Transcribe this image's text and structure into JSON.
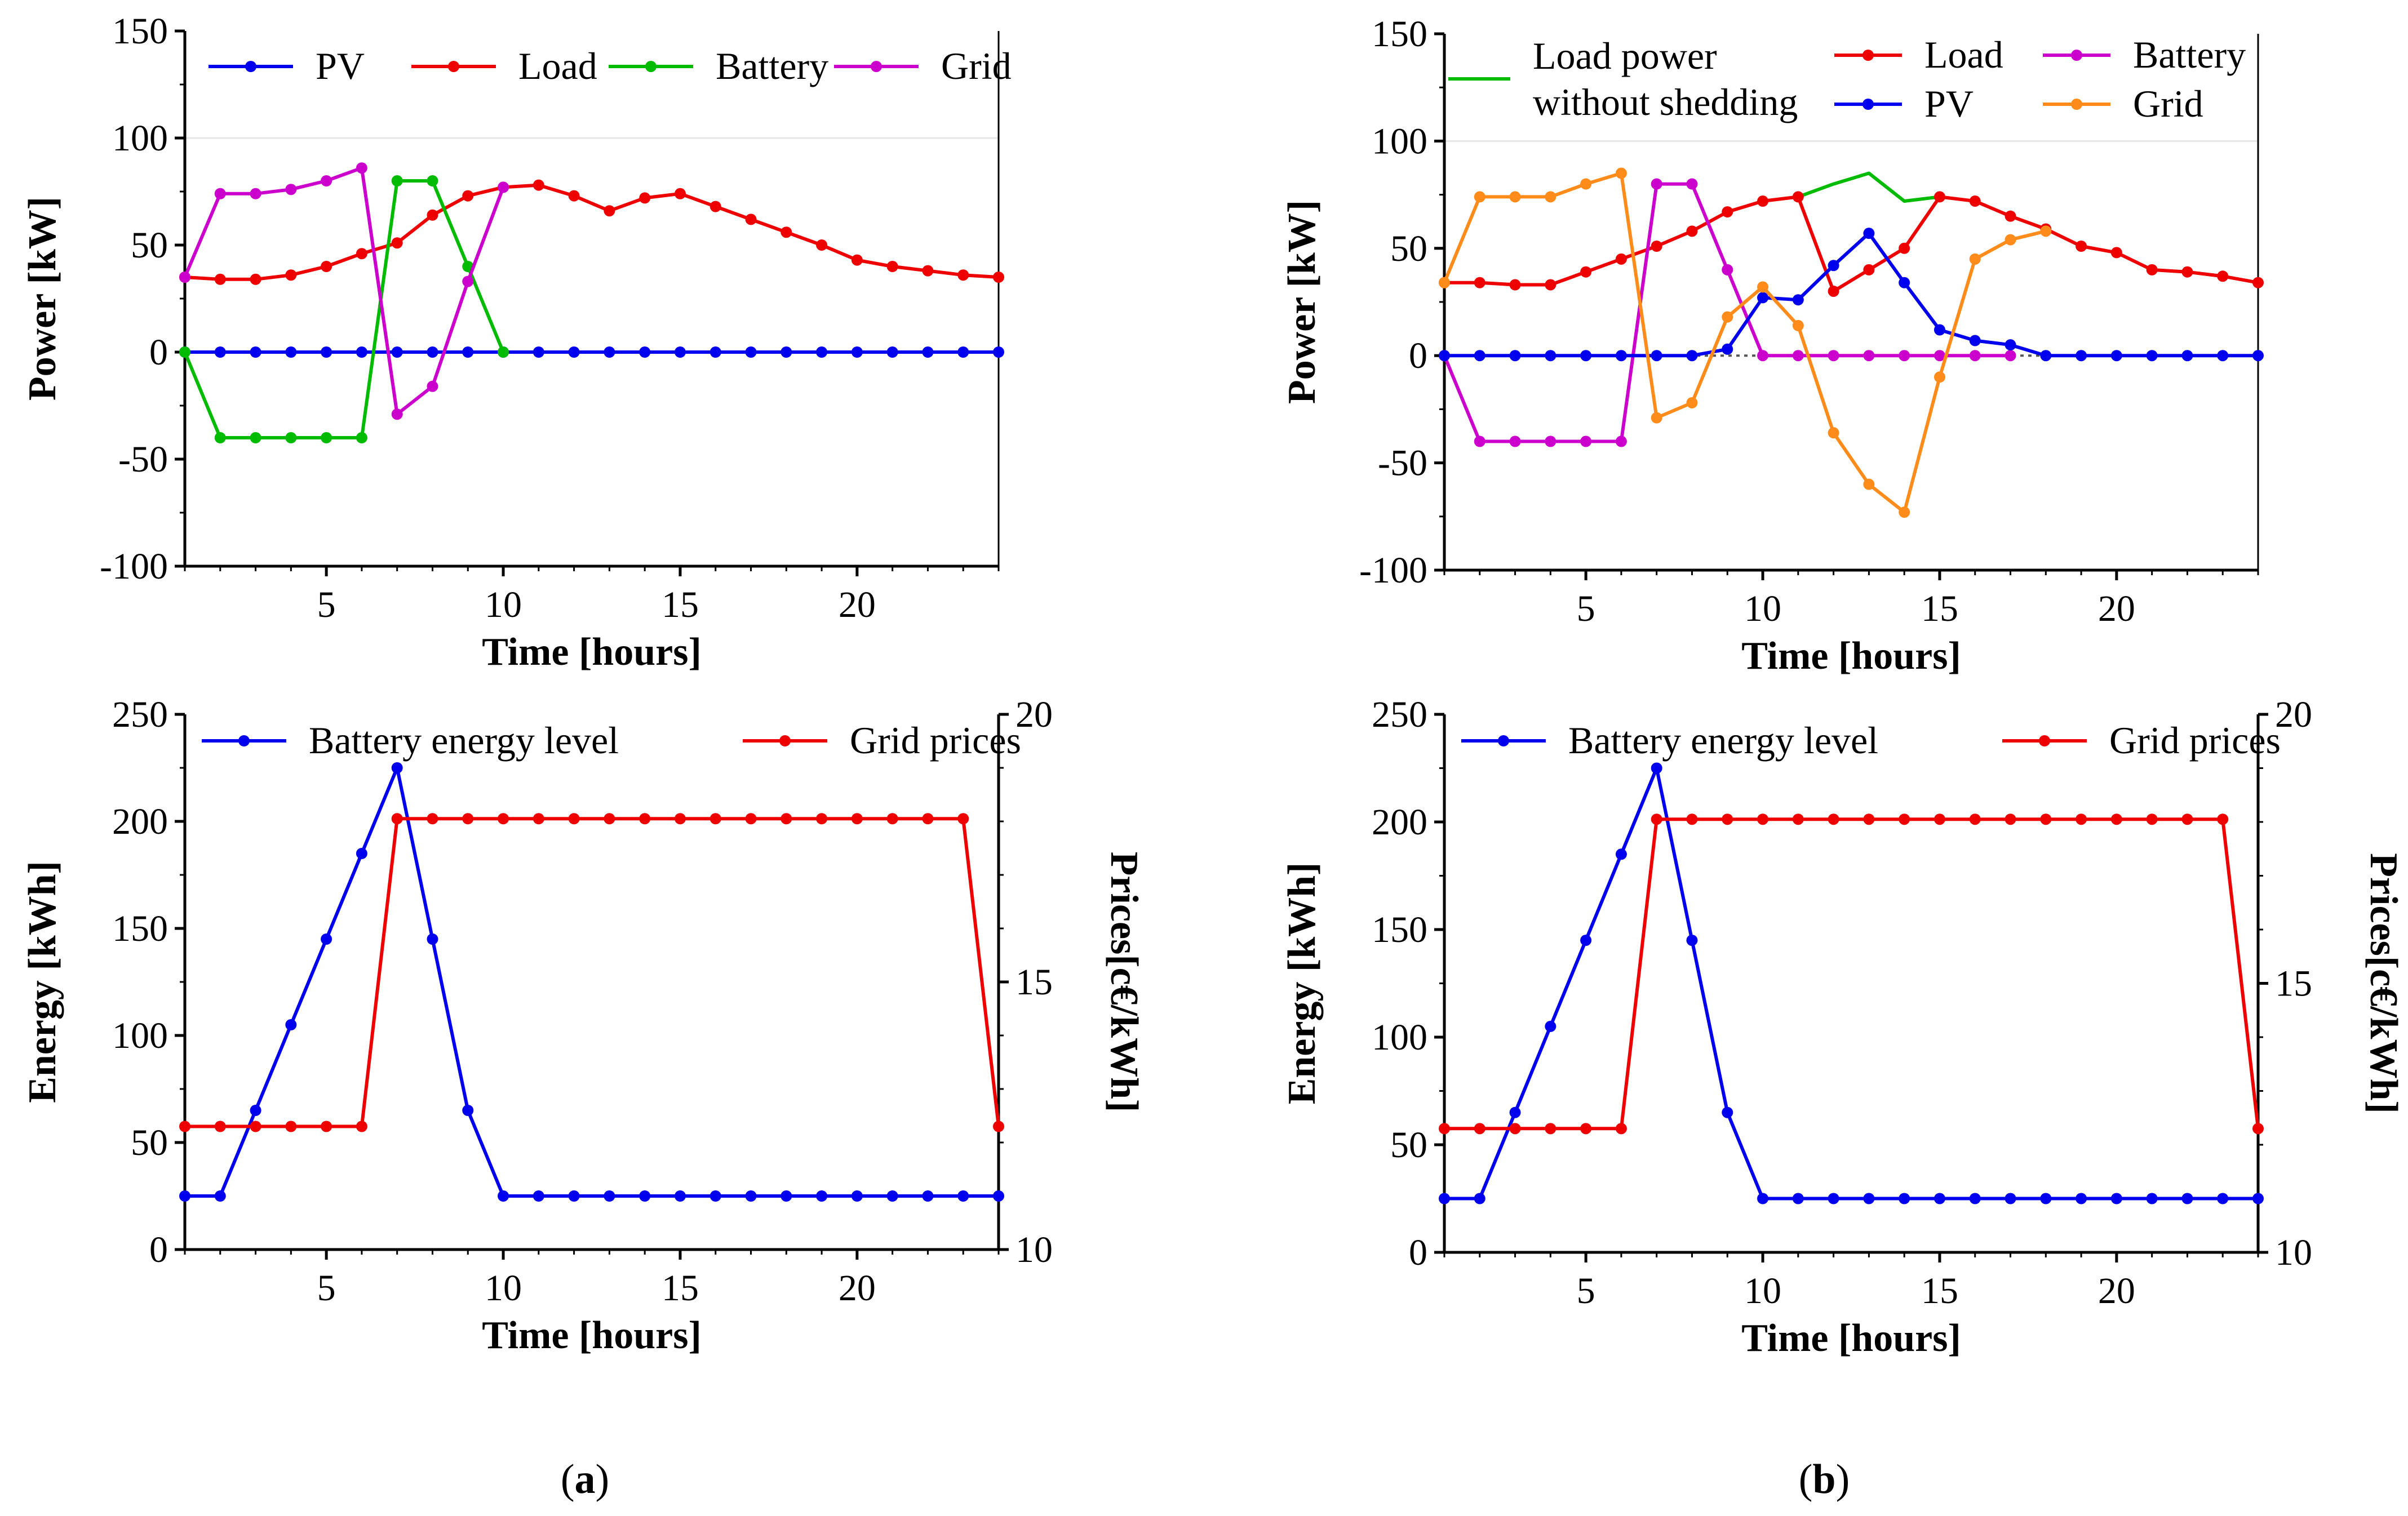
{
  "panel_captions": [
    {
      "open": "(",
      "letter": "a",
      "close": ")"
    },
    {
      "open": "(",
      "letter": "b",
      "close": ")"
    }
  ],
  "chart_data": [
    {
      "id": "a_power",
      "type": "line",
      "xlabel": "Time [hours]",
      "ylabel": "Power [kW]",
      "xlim": [
        1,
        24
      ],
      "ylim": [
        -100,
        150
      ],
      "xticks": [
        5,
        10,
        15,
        20
      ],
      "yticks": [
        -100,
        -50,
        0,
        50,
        100,
        150
      ],
      "gridlines": [
        100
      ],
      "x": [
        1,
        2,
        3,
        4,
        5,
        6,
        7,
        8,
        9,
        10,
        11,
        12,
        13,
        14,
        15,
        16,
        17,
        18,
        19,
        20,
        21,
        22,
        23,
        24
      ],
      "series": [
        {
          "name": "PV",
          "color": "#0000ee",
          "markers": true,
          "values": [
            0,
            0,
            0,
            0,
            0,
            0,
            0,
            0,
            0,
            0,
            0,
            0,
            0,
            0,
            0,
            0,
            0,
            0,
            0,
            0,
            0,
            0,
            0,
            0
          ]
        },
        {
          "name": "Load",
          "color": "#ee0000",
          "markers": true,
          "values": [
            35,
            34,
            34,
            36,
            40,
            46,
            51,
            64,
            73,
            77,
            78,
            73,
            66,
            72,
            74,
            68,
            62,
            56,
            50,
            43,
            40,
            38,
            36,
            35
          ]
        },
        {
          "name": "Battery",
          "color": "#00bb00",
          "markers": true,
          "x": [
            1,
            2,
            3,
            4,
            5,
            6,
            7,
            8,
            9,
            10
          ],
          "values": [
            0,
            -40,
            -40,
            -40,
            -40,
            -40,
            80,
            80,
            40,
            0
          ]
        },
        {
          "name": "Grid",
          "color": "#cc00cc",
          "markers": true,
          "x": [
            1,
            2,
            3,
            4,
            5,
            6,
            7,
            8,
            9,
            10
          ],
          "values": [
            35,
            74,
            74,
            76,
            80,
            86,
            -29,
            -16,
            33,
            77
          ]
        }
      ]
    },
    {
      "id": "a_energy",
      "type": "line",
      "xlabel": "Time [hours]",
      "ylabel": "Energy [kWh]",
      "y2label": "Prices[c€/kWh]",
      "xlim": [
        1,
        24
      ],
      "ylim": [
        0,
        250
      ],
      "y2lim": [
        10,
        20
      ],
      "xticks": [
        5,
        10,
        15,
        20
      ],
      "yticks": [
        0,
        50,
        100,
        150,
        200,
        250
      ],
      "y2ticks": [
        10,
        15,
        20
      ],
      "x": [
        1,
        2,
        3,
        4,
        5,
        6,
        7,
        8,
        9,
        10,
        11,
        12,
        13,
        14,
        15,
        16,
        17,
        18,
        19,
        20,
        21,
        22,
        23,
        24
      ],
      "series": [
        {
          "name": "Battery energy level",
          "color": "#0000ee",
          "markers": true,
          "axis": "left",
          "values": [
            25,
            25,
            65,
            105,
            145,
            185,
            225,
            145,
            65,
            25,
            25,
            25,
            25,
            25,
            25,
            25,
            25,
            25,
            25,
            25,
            25,
            25,
            25,
            25
          ]
        },
        {
          "name": "Grid prices",
          "color": "#ee0000",
          "markers": true,
          "axis": "right",
          "values": [
            12.3,
            12.3,
            12.3,
            12.3,
            12.3,
            12.3,
            18.05,
            18.05,
            18.05,
            18.05,
            18.05,
            18.05,
            18.05,
            18.05,
            18.05,
            18.05,
            18.05,
            18.05,
            18.05,
            18.05,
            18.05,
            18.05,
            18.05,
            12.3
          ]
        }
      ]
    },
    {
      "id": "b_power",
      "type": "line",
      "xlabel": "Time [hours]",
      "ylabel": "Power [kW]",
      "xlim": [
        1,
        24
      ],
      "ylim": [
        -100,
        150
      ],
      "xticks": [
        5,
        10,
        15,
        20
      ],
      "yticks": [
        -100,
        -50,
        0,
        50,
        100,
        150
      ],
      "gridlines": [
        100
      ],
      "x": [
        1,
        2,
        3,
        4,
        5,
        6,
        7,
        8,
        9,
        10,
        11,
        12,
        13,
        14,
        15,
        16,
        17,
        18,
        19,
        20,
        21,
        22,
        23,
        24
      ],
      "series": [
        {
          "name": "Load power without shedding",
          "color": "#00bb00",
          "markers": false,
          "x": [
            11,
            12,
            13,
            14,
            15
          ],
          "values": [
            74,
            80,
            85,
            72,
            74
          ]
        },
        {
          "name": "Load",
          "color": "#ee0000",
          "markers": true,
          "values": [
            34,
            34,
            33,
            33,
            39,
            45,
            51,
            58,
            67,
            72,
            74,
            30,
            40,
            50,
            74,
            72,
            65,
            59,
            51,
            48,
            40,
            39,
            37,
            34
          ]
        },
        {
          "name": "Battery",
          "color": "#cc00cc",
          "markers": true,
          "x": [
            1,
            2,
            3,
            4,
            5,
            6,
            7,
            8,
            9,
            10,
            11,
            12,
            13,
            14,
            15,
            16,
            17
          ],
          "values": [
            0,
            -40,
            -40,
            -40,
            -40,
            -40,
            80,
            80,
            40,
            0,
            0,
            0,
            0,
            0,
            0,
            0,
            0
          ]
        },
        {
          "name": "PV",
          "color": "#0000ee",
          "markers": true,
          "values": [
            0,
            0,
            0,
            0,
            0,
            0,
            0,
            0,
            3,
            27,
            26,
            42,
            57,
            34,
            12,
            7,
            5,
            0,
            0,
            0,
            0,
            0,
            0,
            0
          ]
        },
        {
          "name": "Grid",
          "color": "#ff8c1a",
          "markers": true,
          "x": [
            1,
            2,
            3,
            4,
            5,
            6,
            7,
            8,
            9,
            10,
            11,
            12,
            13,
            14,
            15,
            16,
            17,
            18
          ],
          "values": [
            34,
            74,
            74,
            74,
            80,
            85,
            -29,
            -22,
            18,
            32,
            14,
            -36,
            -60,
            -73,
            -10,
            45,
            54,
            58
          ]
        }
      ]
    },
    {
      "id": "b_energy",
      "type": "line",
      "xlabel": "Time [hours]",
      "ylabel": "Energy [kWh]",
      "y2label": "Prices[c€/kWh]",
      "xlim": [
        1,
        24
      ],
      "ylim": [
        0,
        250
      ],
      "y2lim": [
        10,
        20
      ],
      "xticks": [
        5,
        10,
        15,
        20
      ],
      "yticks": [
        0,
        50,
        100,
        150,
        200,
        250
      ],
      "y2ticks": [
        10,
        15,
        20
      ],
      "x": [
        1,
        2,
        3,
        4,
        5,
        6,
        7,
        8,
        9,
        10,
        11,
        12,
        13,
        14,
        15,
        16,
        17,
        18,
        19,
        20,
        21,
        22,
        23,
        24
      ],
      "series": [
        {
          "name": "Battery energy level",
          "color": "#0000ee",
          "markers": true,
          "axis": "left",
          "values": [
            25,
            25,
            65,
            105,
            145,
            185,
            225,
            145,
            65,
            25,
            25,
            25,
            25,
            25,
            25,
            25,
            25,
            25,
            25,
            25,
            25,
            25,
            25,
            25
          ]
        },
        {
          "name": "Grid prices",
          "color": "#ee0000",
          "markers": true,
          "axis": "right",
          "values": [
            12.3,
            12.3,
            12.3,
            12.3,
            12.3,
            12.3,
            18.05,
            18.05,
            18.05,
            18.05,
            18.05,
            18.05,
            18.05,
            18.05,
            18.05,
            18.05,
            18.05,
            18.05,
            18.05,
            18.05,
            18.05,
            18.05,
            18.05,
            12.3
          ]
        }
      ]
    }
  ]
}
